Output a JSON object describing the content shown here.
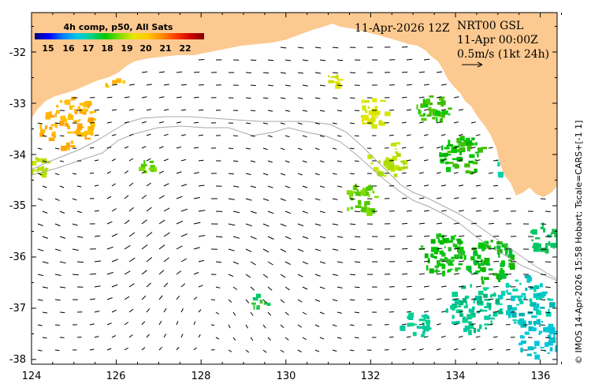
{
  "map": {
    "lon_ticks": [
      "124",
      "126",
      "128",
      "130",
      "132",
      "134",
      "136"
    ],
    "lat_ticks": [
      "-32",
      "-33",
      "-34",
      "-35",
      "-36",
      "-37",
      "-38"
    ],
    "colors": {
      "land": "#fcc990",
      "ocean": "#ffffff",
      "frame": "#000000",
      "isobath": "#a8a8a8"
    }
  },
  "colorbar": {
    "title": "4h comp, p50, All Sats",
    "labels": [
      "15",
      "16",
      "17",
      "18",
      "19",
      "20",
      "21",
      "22"
    ],
    "colors": [
      "#00007f",
      "#0000ff",
      "#007fff",
      "#00c8e6",
      "#00d28c",
      "#00c800",
      "#7fdc00",
      "#e6e600",
      "#ffc800",
      "#ff8c00",
      "#ff3c00",
      "#d20000",
      "#7f0000"
    ]
  },
  "header": {
    "date": "11-Apr-2026 12Z",
    "product": "NRT00 GSL",
    "time": "11-Apr 00:00Z",
    "scale": "0.5m/s (1kt 24h)"
  },
  "credit": "© IMOS 14-Apr-2026 15:58 Hobart; Tscale=CARS+[-1 1]"
}
